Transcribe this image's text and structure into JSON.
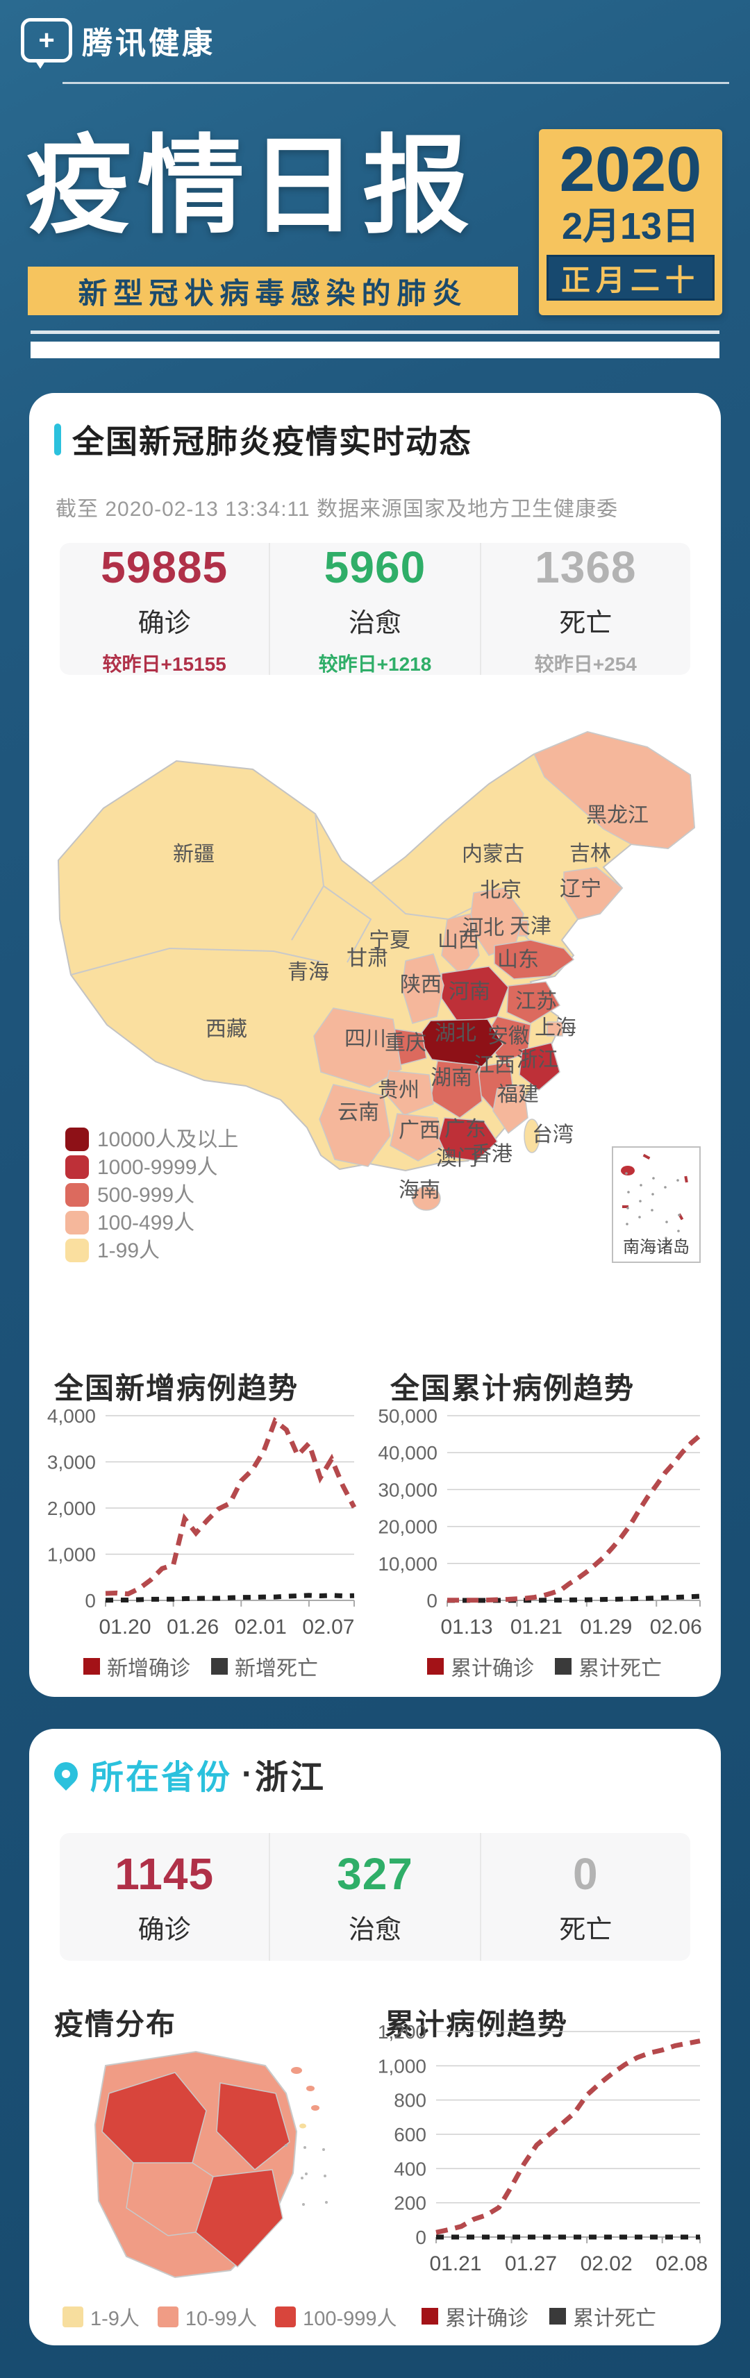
{
  "header": {
    "brand": "腾讯健康",
    "title": "疫情日报",
    "subtitle": "新型冠状病毒感染的肺炎",
    "date_year": "2020",
    "date_md": "2月13日",
    "lunar": "正月二十",
    "accent_yellow": "#f6c45e",
    "navy": "#17496f"
  },
  "national": {
    "section_title": "全国新冠肺炎疫情实时动态",
    "as_of": "截至 2020-02-13 13:34:11 数据来源国家及地方卫生健康委",
    "stats": [
      {
        "value": "59885",
        "label": "确诊",
        "delta": "较昨日+15155",
        "color": "#b03048"
      },
      {
        "value": "5960",
        "label": "治愈",
        "delta": "较昨日+1218",
        "color": "#2fae68"
      },
      {
        "value": "1368",
        "label": "死亡",
        "delta": "较昨日+254",
        "color": "#b3b3b3",
        "delta_color": "#a9a9a9"
      }
    ],
    "map_legend": [
      {
        "label": "10000人及以上",
        "color": "#8e1117"
      },
      {
        "label": "1000-9999人",
        "color": "#be3038"
      },
      {
        "label": "500-999人",
        "color": "#dc6a5e"
      },
      {
        "label": "100-499人",
        "color": "#f5b79b"
      },
      {
        "label": "1-99人",
        "color": "#fadf9f"
      }
    ],
    "inset_label": "南海诸岛",
    "provinces": [
      {
        "name": "黑龙江",
        "level": 2
      },
      {
        "name": "吉林",
        "level": 1
      },
      {
        "name": "辽宁",
        "level": 2
      },
      {
        "name": "内蒙古",
        "level": 1
      },
      {
        "name": "北京",
        "level": 2
      },
      {
        "name": "天津",
        "level": 2
      },
      {
        "name": "河北",
        "level": 2
      },
      {
        "name": "山西",
        "level": 2
      },
      {
        "name": "山东",
        "level": 3
      },
      {
        "name": "河南",
        "level": 4
      },
      {
        "name": "江苏",
        "level": 3
      },
      {
        "name": "安徽",
        "level": 3
      },
      {
        "name": "上海",
        "level": 2
      },
      {
        "name": "湖北",
        "level": 5
      },
      {
        "name": "重庆",
        "level": 3
      },
      {
        "name": "四川",
        "level": 2
      },
      {
        "name": "陕西",
        "level": 2
      },
      {
        "name": "宁夏",
        "level": 1
      },
      {
        "name": "甘肃",
        "level": 1
      },
      {
        "name": "青海",
        "level": 1
      },
      {
        "name": "新疆",
        "level": 1
      },
      {
        "name": "西藏",
        "level": 1
      },
      {
        "name": "浙江",
        "level": 4
      },
      {
        "name": "江西",
        "level": 3
      },
      {
        "name": "湖南",
        "level": 3
      },
      {
        "name": "贵州",
        "level": 2
      },
      {
        "name": "云南",
        "level": 2
      },
      {
        "name": "广西",
        "level": 2
      },
      {
        "name": "广东",
        "level": 4
      },
      {
        "name": "福建",
        "level": 2
      },
      {
        "name": "海南",
        "level": 2
      },
      {
        "name": "台湾",
        "level": 1
      },
      {
        "name": "香港",
        "level": 0
      },
      {
        "name": "澳门",
        "level": 0
      }
    ]
  },
  "province_card": {
    "pin_title": "所在省份",
    "separator": "·",
    "province": "浙江",
    "stats": [
      {
        "value": "1145",
        "label": "确诊",
        "color": "#b03048"
      },
      {
        "value": "327",
        "label": "治愈",
        "color": "#2fae68"
      },
      {
        "value": "0",
        "label": "死亡",
        "color": "#b3b3b3"
      }
    ],
    "dist_title": "疫情分布",
    "trend_title": "累计病例趋势",
    "dist_legend": [
      {
        "label": "1-9人",
        "color": "#f7de9e"
      },
      {
        "label": "10-99人",
        "color": "#f09c85"
      },
      {
        "label": "100-999人",
        "color": "#d8453c"
      }
    ]
  },
  "chart_data": [
    {
      "type": "line",
      "title": "全国新增病例趋势",
      "x": [
        "01.20",
        "01.21",
        "01.22",
        "01.23",
        "01.24",
        "01.25",
        "01.26",
        "01.27",
        "01.28",
        "01.29",
        "01.30",
        "01.31",
        "02.01",
        "02.02",
        "02.03",
        "02.04",
        "02.05",
        "02.06",
        "02.07",
        "02.08",
        "02.09",
        "02.10",
        "02.11"
      ],
      "tick_indices": [
        0,
        6,
        12,
        18
      ],
      "tick_labels": [
        "01.20",
        "01.26",
        "02.01",
        "02.07"
      ],
      "ylim": [
        0,
        4000
      ],
      "yticks": [
        0,
        1000,
        2000,
        3000,
        4000
      ],
      "grid": true,
      "legend_position": "bottom",
      "series": [
        {
          "name": "新增确诊",
          "color": "#b5494c",
          "swatch": "#a31217",
          "values": [
            150,
            160,
            140,
            260,
            444,
            688,
            769,
            1771,
            1459,
            1737,
            1982,
            2102,
            2590,
            2829,
            3235,
            3887,
            3694,
            3143,
            3399,
            2656,
            3062,
            2484,
            2015
          ]
        },
        {
          "name": "新增死亡",
          "color": "#1e1e1e",
          "swatch": "#3a3a3a",
          "values": [
            3,
            8,
            8,
            15,
            24,
            26,
            26,
            38,
            43,
            46,
            45,
            57,
            64,
            66,
            73,
            73,
            89,
            97,
            108,
            97,
            108,
            97,
            103
          ]
        }
      ]
    },
    {
      "type": "line",
      "title": "全国累计病例趋势",
      "x": [
        "01.13",
        "01.14",
        "01.15",
        "01.16",
        "01.17",
        "01.18",
        "01.19",
        "01.20",
        "01.21",
        "01.22",
        "01.23",
        "01.24",
        "01.25",
        "01.26",
        "01.27",
        "01.28",
        "01.29",
        "01.30",
        "01.31",
        "02.01",
        "02.02",
        "02.03",
        "02.04",
        "02.05",
        "02.06",
        "02.07",
        "02.08",
        "02.09",
        "02.10",
        "02.11"
      ],
      "tick_indices": [
        0,
        8,
        16,
        24
      ],
      "tick_labels": [
        "01.13",
        "01.21",
        "01.29",
        "02.06"
      ],
      "ylim": [
        0,
        50000
      ],
      "yticks": [
        0,
        10000,
        20000,
        30000,
        40000,
        50000
      ],
      "grid": true,
      "legend_position": "bottom",
      "series": [
        {
          "name": "累计确诊",
          "color": "#b5494c",
          "swatch": "#a31217",
          "values": [
            41,
            41,
            41,
            45,
            62,
            121,
            198,
            291,
            440,
            571,
            830,
            1287,
            1975,
            2744,
            4515,
            5974,
            7711,
            9692,
            11791,
            14380,
            17205,
            20438,
            24324,
            28018,
            31161,
            34546,
            37198,
            40171,
            42638,
            44653
          ]
        },
        {
          "name": "累计死亡",
          "color": "#1e1e1e",
          "swatch": "#3a3a3a",
          "values": [
            1,
            1,
            2,
            2,
            2,
            3,
            4,
            6,
            9,
            17,
            25,
            41,
            56,
            80,
            106,
            132,
            170,
            213,
            259,
            304,
            361,
            425,
            490,
            563,
            637,
            722,
            811,
            908,
            1016,
            1113
          ]
        }
      ]
    },
    {
      "type": "line",
      "title": "累计病例趋势",
      "x": [
        "01.21",
        "01.22",
        "01.23",
        "01.24",
        "01.25",
        "01.26",
        "01.27",
        "01.28",
        "01.29",
        "01.30",
        "01.31",
        "02.01",
        "02.02",
        "02.03",
        "02.04",
        "02.05",
        "02.06",
        "02.07",
        "02.08",
        "02.09",
        "02.10",
        "02.11"
      ],
      "tick_indices": [
        0,
        6,
        12,
        18
      ],
      "tick_labels": [
        "01.21",
        "01.27",
        "02.02",
        "02.08"
      ],
      "ylim": [
        0,
        1200
      ],
      "yticks": [
        0,
        200,
        400,
        600,
        800,
        1000,
        1200
      ],
      "grid": true,
      "legend_position": "bottom",
      "series": [
        {
          "name": "累计确诊",
          "color": "#b5494c",
          "swatch": "#a31217",
          "values": [
            27,
            43,
            62,
            104,
            128,
            173,
            296,
            428,
            537,
            599,
            661,
            724,
            829,
            895,
            954,
            1006,
            1048,
            1075,
            1092,
            1117,
            1131,
            1145
          ]
        },
        {
          "name": "累计死亡",
          "color": "#1e1e1e",
          "swatch": "#3a3a3a",
          "values": [
            0,
            0,
            0,
            0,
            0,
            0,
            0,
            0,
            0,
            0,
            0,
            0,
            0,
            0,
            0,
            0,
            0,
            0,
            0,
            0,
            0,
            0
          ]
        }
      ]
    }
  ]
}
